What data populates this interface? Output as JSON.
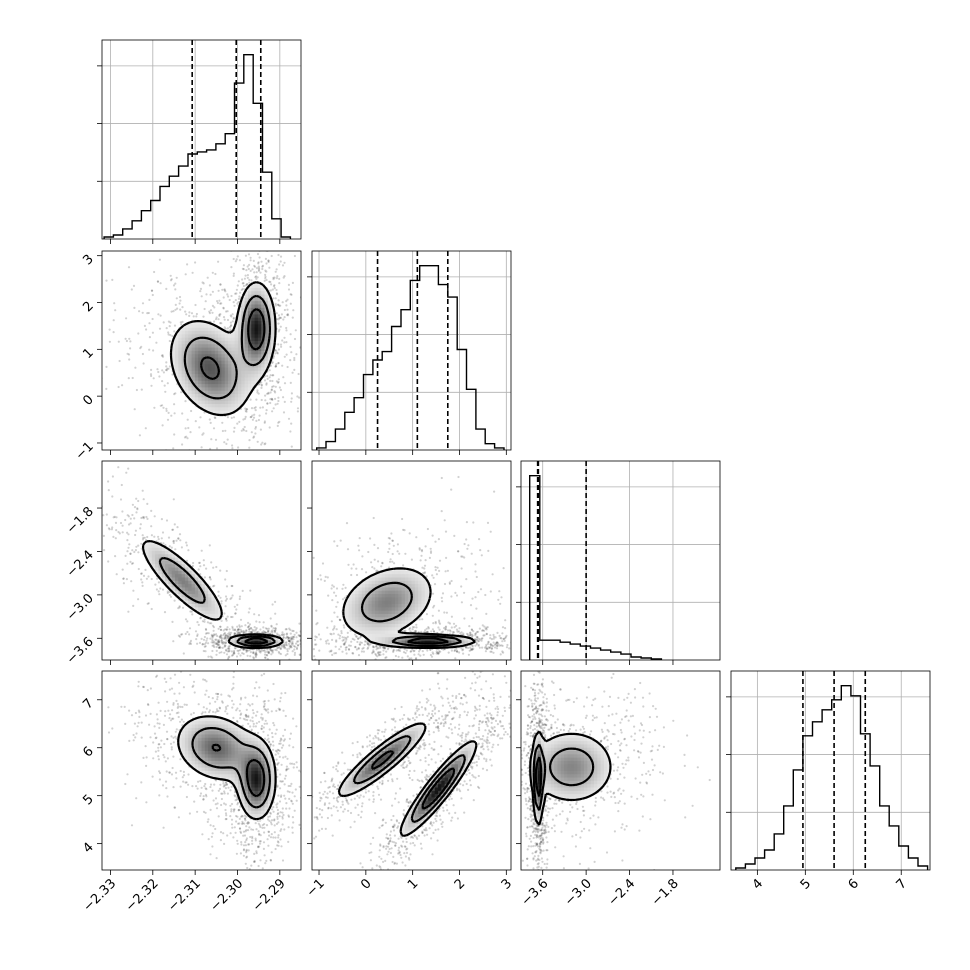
{
  "chart_data": {
    "type": "corner",
    "title": "",
    "parameters": [
      {
        "label": "",
        "range": [
          -2.332,
          -2.285
        ],
        "ticks": [
          -2.33,
          -2.32,
          -2.31,
          -2.3,
          -2.29
        ],
        "tick_labels": [
          "−2.33",
          "−2.32",
          "−2.31",
          "−2.30",
          "−2.29"
        ]
      },
      {
        "label": "",
        "range": [
          -1.15,
          3.1
        ],
        "ticks": [
          -1,
          0,
          1,
          2,
          3
        ],
        "tick_labels": [
          "−1",
          "0",
          "1",
          "2",
          "3"
        ]
      },
      {
        "label": "",
        "range": [
          -3.9,
          -1.15
        ],
        "ticks": [
          -3.6,
          -3.0,
          -2.4,
          -1.8
        ],
        "tick_labels": [
          "−3.6",
          "−3.0",
          "−2.4",
          "−1.8"
        ]
      },
      {
        "label": "",
        "range": [
          3.45,
          7.6
        ],
        "ticks": [
          4,
          5,
          6,
          7
        ],
        "tick_labels": [
          "4",
          "5",
          "6",
          "7"
        ]
      }
    ],
    "diagonal_histograms": [
      {
        "param": 0,
        "quantiles": [
          -2.3107,
          -2.3003,
          -2.2945
        ],
        "bin_edges": [
          -2.3315,
          -2.3293,
          -2.3271,
          -2.3249,
          -2.3227,
          -2.3205,
          -2.3183,
          -2.3161,
          -2.3139,
          -2.3117,
          -2.3095,
          -2.3073,
          -2.3051,
          -2.3029,
          -2.3007,
          -2.2985,
          -2.2963,
          -2.2941,
          -2.2919,
          -2.2897,
          -2.2875
        ],
        "counts": [
          0.01,
          0.02,
          0.05,
          0.09,
          0.14,
          0.19,
          0.26,
          0.31,
          0.36,
          0.42,
          0.43,
          0.44,
          0.47,
          0.52,
          0.77,
          0.91,
          0.67,
          0.33,
          0.1,
          0.01
        ]
      },
      {
        "param": 1,
        "quantiles": [
          0.25,
          1.1,
          1.75
        ],
        "bin_edges": [
          -1.05,
          -0.85,
          -0.65,
          -0.45,
          -0.25,
          -0.05,
          0.15,
          0.35,
          0.55,
          0.75,
          0.95,
          1.15,
          1.35,
          1.55,
          1.75,
          1.95,
          2.15,
          2.35,
          2.55,
          2.75,
          2.95
        ],
        "counts": [
          0.01,
          0.04,
          0.1,
          0.18,
          0.25,
          0.36,
          0.43,
          0.47,
          0.59,
          0.67,
          0.81,
          0.88,
          0.88,
          0.79,
          0.73,
          0.48,
          0.29,
          0.1,
          0.03,
          0.01
        ]
      },
      {
        "param": 2,
        "quantiles": [
          -3.67,
          -3.66,
          -3.0
        ],
        "bin_edges": [
          -3.78,
          -3.64,
          -3.5,
          -3.36,
          -3.22,
          -3.08,
          -2.94,
          -2.8,
          -2.66,
          -2.52,
          -2.38,
          -2.24,
          -2.1,
          -1.96
        ],
        "counts": [
          0.93,
          0.1,
          0.1,
          0.09,
          0.08,
          0.07,
          0.06,
          0.05,
          0.04,
          0.03,
          0.015,
          0.01,
          0.005
        ]
      },
      {
        "param": 3,
        "quantiles": [
          4.95,
          5.6,
          6.25
        ],
        "bin_edges": [
          3.55,
          3.75,
          3.95,
          4.15,
          4.35,
          4.55,
          4.75,
          4.95,
          5.15,
          5.35,
          5.55,
          5.75,
          5.95,
          6.15,
          6.35,
          6.55,
          6.75,
          6.95,
          7.15,
          7.35,
          7.55
        ],
        "counts": [
          0.01,
          0.03,
          0.06,
          0.1,
          0.18,
          0.32,
          0.5,
          0.67,
          0.74,
          0.8,
          0.85,
          0.92,
          0.87,
          0.68,
          0.52,
          0.32,
          0.22,
          0.12,
          0.06,
          0.02
        ]
      }
    ],
    "pair_panels": [
      {
        "x": 0,
        "y": 1,
        "modes": [
          {
            "cx": -2.2955,
            "cy": 1.45,
            "sx": 0.0025,
            "sy": 0.55,
            "rho": 0.0,
            "w": 0.55
          },
          {
            "cx": -2.3065,
            "cy": 0.6,
            "sx": 0.0055,
            "sy": 0.6,
            "rho": -0.3,
            "w": 0.45
          }
        ],
        "contour_levels": [
          0.2,
          0.45,
          0.75
        ]
      },
      {
        "x": 0,
        "y": 2,
        "modes": [
          {
            "cx": -2.2955,
            "cy": -3.64,
            "sx": 0.0035,
            "sy": 0.05,
            "rho": 0.0,
            "w": 0.6
          },
          {
            "cx": -2.313,
            "cy": -2.8,
            "sx": 0.006,
            "sy": 0.35,
            "rho": -0.85,
            "w": 0.4
          }
        ],
        "contour_levels": [
          0.2,
          0.45,
          0.75
        ]
      },
      {
        "x": 1,
        "y": 2,
        "modes": [
          {
            "cx": 1.35,
            "cy": -3.64,
            "sx": 0.55,
            "sy": 0.05,
            "rho": 0.0,
            "w": 0.6
          },
          {
            "cx": 0.45,
            "cy": -3.1,
            "sx": 0.6,
            "sy": 0.3,
            "rho": 0.3,
            "w": 0.4
          }
        ],
        "contour_levels": [
          0.2,
          0.45,
          0.75
        ]
      },
      {
        "x": 0,
        "y": 3,
        "modes": [
          {
            "cx": -2.2955,
            "cy": 5.3,
            "sx": 0.0025,
            "sy": 0.45,
            "rho": 0.0,
            "w": 0.55
          },
          {
            "cx": -2.305,
            "cy": 6.0,
            "sx": 0.0055,
            "sy": 0.4,
            "rho": -0.2,
            "w": 0.45
          }
        ],
        "contour_levels": [
          0.2,
          0.45,
          0.75
        ]
      },
      {
        "x": 1,
        "y": 3,
        "modes": [
          {
            "cx": 1.55,
            "cy": 5.15,
            "sx": 0.45,
            "sy": 0.55,
            "rho": 0.92,
            "w": 0.55
          },
          {
            "cx": 0.35,
            "cy": 5.75,
            "sx": 0.55,
            "sy": 0.45,
            "rho": 0.9,
            "w": 0.45
          }
        ],
        "contour_levels": [
          0.2,
          0.45,
          0.75
        ]
      },
      {
        "x": 2,
        "y": 3,
        "modes": [
          {
            "cx": -3.66,
            "cy": 5.3,
            "sx": 0.04,
            "sy": 0.55,
            "rho": 0.0,
            "w": 0.55
          },
          {
            "cx": -3.2,
            "cy": 5.6,
            "sx": 0.35,
            "sy": 0.45,
            "rho": 0.0,
            "w": 0.45
          }
        ],
        "contour_levels": [
          0.2,
          0.45,
          0.75
        ]
      }
    ]
  }
}
